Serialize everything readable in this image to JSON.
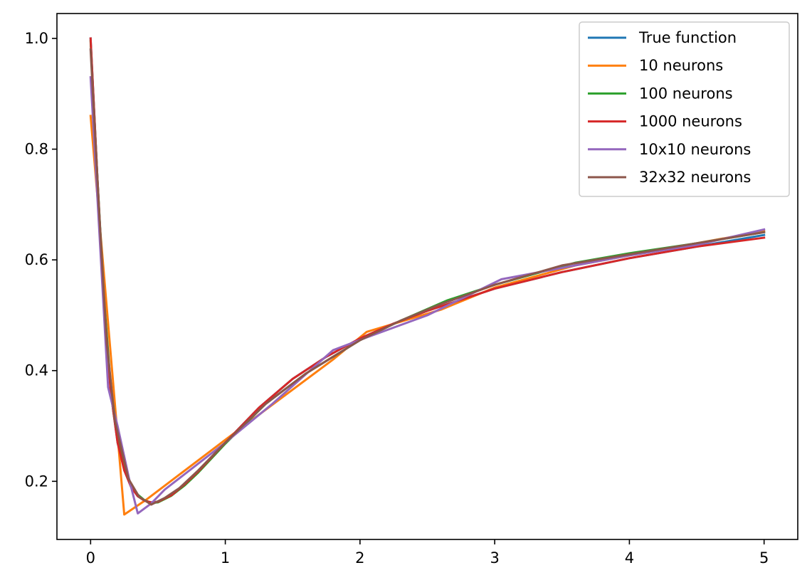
{
  "chart_data": {
    "type": "line",
    "title": "",
    "xlabel": "",
    "ylabel": "",
    "xlim": [
      -0.25,
      5.25
    ],
    "ylim": [
      0.095,
      1.045
    ],
    "xticks": [
      0,
      1,
      2,
      3,
      4,
      5
    ],
    "xtick_labels": [
      "0",
      "1",
      "2",
      "3",
      "4",
      "5"
    ],
    "yticks": [
      0.2,
      0.4,
      0.6,
      0.8,
      1.0
    ],
    "ytick_labels": [
      "0.2",
      "0.4",
      "0.6",
      "0.8",
      "1.0"
    ],
    "grid": false,
    "legend_position": "top-right",
    "series": [
      {
        "name": "True function",
        "color": "#1f77b4",
        "x": [
          0,
          0.05,
          0.1,
          0.15,
          0.2,
          0.25,
          0.3,
          0.35,
          0.4,
          0.45,
          0.5,
          0.6,
          0.7,
          0.8,
          1.0,
          1.25,
          1.5,
          1.75,
          2.0,
          2.25,
          2.5,
          2.75,
          3.0,
          3.5,
          4.0,
          4.5,
          5.0
        ],
        "y": [
          1.0,
          0.75,
          0.52,
          0.36,
          0.27,
          0.22,
          0.19,
          0.173,
          0.165,
          0.162,
          0.163,
          0.175,
          0.195,
          0.218,
          0.27,
          0.333,
          0.385,
          0.425,
          0.458,
          0.485,
          0.508,
          0.528,
          0.548,
          0.578,
          0.603,
          0.624,
          0.645
        ]
      },
      {
        "name": "10 neurons",
        "color": "#ff7f0e",
        "x": [
          0,
          0.25,
          0.42,
          1.0,
          1.8,
          2.05,
          2.6,
          3.0,
          3.6,
          4.0,
          5.0
        ],
        "y": [
          0.86,
          0.14,
          0.168,
          0.275,
          0.42,
          0.47,
          0.51,
          0.55,
          0.59,
          0.608,
          0.652
        ]
      },
      {
        "name": "100 neurons",
        "color": "#2ca02c",
        "x": [
          0,
          0.05,
          0.1,
          0.15,
          0.2,
          0.25,
          0.3,
          0.35,
          0.4,
          0.45,
          0.5,
          0.6,
          0.7,
          0.8,
          1.0,
          1.3,
          1.6,
          1.8,
          2.0,
          2.3,
          2.65,
          3.0,
          3.6,
          4.0,
          4.5,
          5.0
        ],
        "y": [
          0.995,
          0.75,
          0.53,
          0.37,
          0.28,
          0.226,
          0.194,
          0.176,
          0.166,
          0.161,
          0.162,
          0.174,
          0.193,
          0.216,
          0.268,
          0.34,
          0.395,
          0.425,
          0.455,
          0.49,
          0.527,
          0.555,
          0.595,
          0.612,
          0.63,
          0.65
        ]
      },
      {
        "name": "1000 neurons",
        "color": "#d62728",
        "x": [
          0,
          0.05,
          0.1,
          0.15,
          0.2,
          0.25,
          0.3,
          0.35,
          0.4,
          0.45,
          0.5,
          0.6,
          0.7,
          0.8,
          1.0,
          1.25,
          1.5,
          1.75,
          2.0,
          2.25,
          2.5,
          2.75,
          3.0,
          3.5,
          4.0,
          4.5,
          5.0
        ],
        "y": [
          1.0,
          0.75,
          0.52,
          0.36,
          0.27,
          0.22,
          0.19,
          0.173,
          0.165,
          0.162,
          0.163,
          0.175,
          0.195,
          0.218,
          0.27,
          0.333,
          0.385,
          0.425,
          0.458,
          0.485,
          0.508,
          0.528,
          0.548,
          0.578,
          0.603,
          0.624,
          0.64
        ]
      },
      {
        "name": "10x10 neurons",
        "color": "#9467bd",
        "x": [
          0,
          0.13,
          0.2,
          0.29,
          0.35,
          0.45,
          0.55,
          1.0,
          1.35,
          1.8,
          2.05,
          2.5,
          3.05,
          3.6,
          4.0,
          4.5,
          5.0
        ],
        "y": [
          0.93,
          0.37,
          0.3,
          0.2,
          0.142,
          0.16,
          0.185,
          0.27,
          0.34,
          0.437,
          0.46,
          0.5,
          0.565,
          0.59,
          0.608,
          0.627,
          0.655
        ]
      },
      {
        "name": "32x32 neurons",
        "color": "#8c564b",
        "x": [
          0,
          0.06,
          0.12,
          0.18,
          0.28,
          0.36,
          0.45,
          0.55,
          0.66,
          0.8,
          1.0,
          1.3,
          1.6,
          1.8,
          2.0,
          2.3,
          2.6,
          3.0,
          3.5,
          4.0,
          4.5,
          5.0
        ],
        "y": [
          0.98,
          0.7,
          0.45,
          0.31,
          0.205,
          0.172,
          0.158,
          0.17,
          0.188,
          0.22,
          0.27,
          0.34,
          0.395,
          0.425,
          0.455,
          0.49,
          0.52,
          0.555,
          0.59,
          0.61,
          0.63,
          0.65
        ]
      }
    ]
  }
}
